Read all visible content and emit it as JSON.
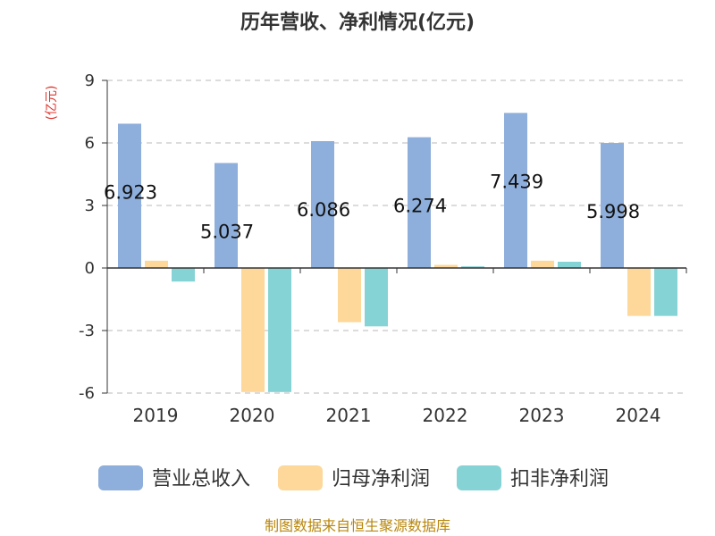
{
  "chart_data": {
    "type": "bar",
    "title": "历年营收、净利情况(亿元)",
    "unit_label": "(亿元)",
    "categories": [
      "2019",
      "2020",
      "2021",
      "2022",
      "2023",
      "2024"
    ],
    "series": [
      {
        "name": "营业总收入",
        "color": "#8eaedb",
        "values": [
          6.923,
          5.037,
          6.086,
          6.274,
          7.439,
          5.998
        ]
      },
      {
        "name": "归母净利润",
        "color": "#fdd89a",
        "values": [
          0.35,
          -5.95,
          -2.6,
          0.15,
          0.35,
          -2.3
        ]
      },
      {
        "name": "扣非净利润",
        "color": "#86d3d5",
        "values": [
          -0.65,
          -5.95,
          -2.8,
          0.08,
          0.3,
          -2.3
        ]
      }
    ],
    "data_labels": [
      "6.923",
      "5.037",
      "6.086",
      "6.274",
      "7.439",
      "5.998"
    ],
    "ylim": [
      -6,
      9
    ],
    "yticks": [
      "9",
      "6",
      "3",
      "0",
      "-3",
      "-6"
    ],
    "ytick_values": [
      9,
      6,
      3,
      0,
      -3,
      -6
    ],
    "grid": true,
    "legend_position": "bottom"
  },
  "source_text": "制图数据来自恒生聚源数据库"
}
